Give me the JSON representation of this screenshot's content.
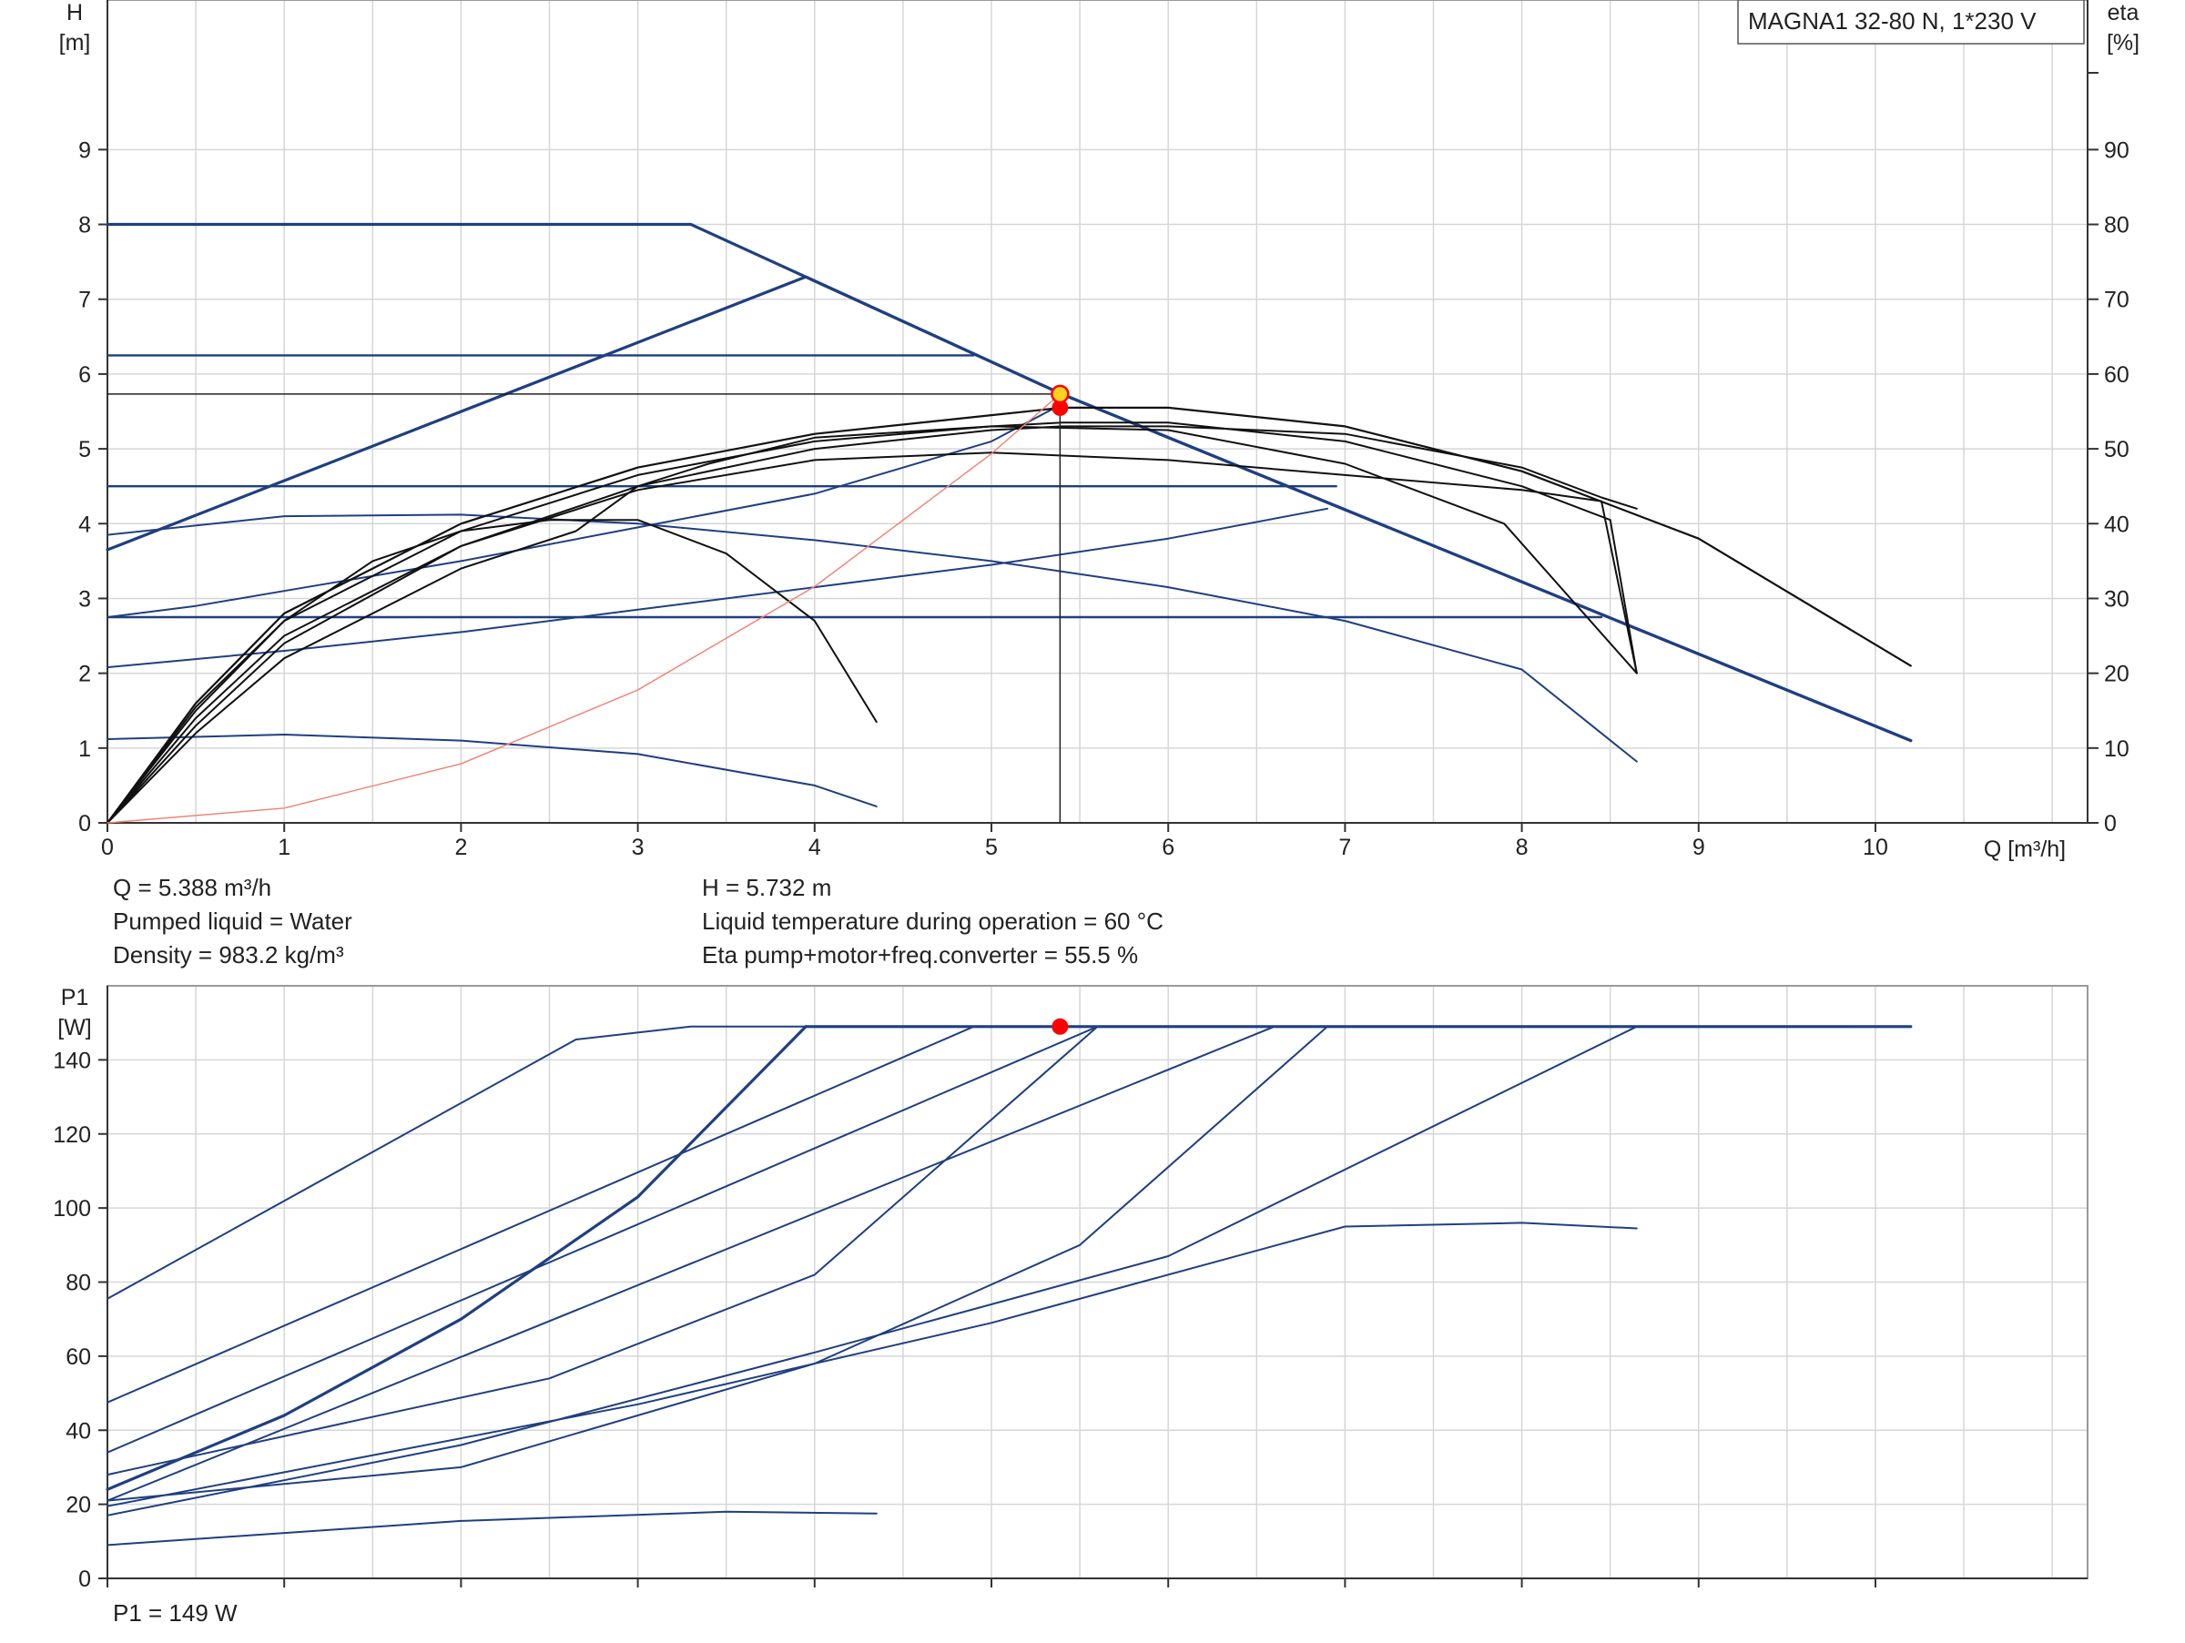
{
  "colors": {
    "navy": "#1f3f80",
    "black": "#111111",
    "grid": "#d6d6d6",
    "system_curve": "#f08070",
    "duty_point": "#ff0000",
    "duty_point_fill": "#ffd21f"
  },
  "product_label": "MAGNA1 32-80 N, 1*230 V",
  "info": {
    "q": "Q = 5.388 m³/h",
    "liquid": "Pumped liquid = Water",
    "density": "Density = 983.2 kg/m³",
    "h": "H = 5.732 m",
    "temp": "Liquid temperature during operation = 60 °C",
    "eta": "Eta pump+motor+freq.converter = 55.5 %",
    "p1": "P1 = 149 W"
  },
  "chart_data": [
    {
      "type": "line",
      "xlabel": "Q [m³/h]",
      "ylabel": "H\n[m]",
      "y2label": "eta\n[%]",
      "xlim": [
        0,
        11.2
      ],
      "ylim": [
        0,
        11
      ],
      "y2lim": [
        0,
        110
      ],
      "xticks": [
        0,
        1,
        2,
        3,
        4,
        5,
        6,
        7,
        8,
        9,
        10
      ],
      "yticks": [
        0,
        1,
        2,
        3,
        4,
        5,
        6,
        7,
        8,
        9
      ],
      "y2ticks": [
        0,
        10,
        20,
        30,
        40,
        50,
        60,
        70,
        80,
        90
      ],
      "grid": true,
      "duty_point": {
        "q": 5.388,
        "h": 5.732
      },
      "duty_eta": {
        "q": 5.388,
        "eta": 55.5
      },
      "series": [
        {
          "role": "head",
          "width": 3.2,
          "points": [
            [
              0,
              8
            ],
            [
              3.3,
              8
            ],
            [
              5.4,
              5.73
            ],
            [
              10.2,
              1.1
            ]
          ]
        },
        {
          "role": "head",
          "width": 3.2,
          "points": [
            [
              0,
              3.65
            ],
            [
              3.95,
              7.3
            ],
            [
              5.4,
              5.73
            ],
            [
              10.2,
              1.1
            ]
          ]
        },
        {
          "role": "head",
          "width": 2.4,
          "points": [
            [
              0,
              6.25
            ],
            [
              4.9,
              6.25
            ]
          ]
        },
        {
          "role": "head",
          "width": 2.4,
          "points": [
            [
              0,
              4.5
            ],
            [
              6.95,
              4.5
            ]
          ]
        },
        {
          "role": "head",
          "width": 2.4,
          "points": [
            [
              0,
              2.75
            ],
            [
              8.45,
              2.75
            ]
          ]
        },
        {
          "role": "head",
          "width": 2,
          "points": [
            [
              0,
              2.08
            ],
            [
              1,
              2.3
            ],
            [
              2,
              2.55
            ],
            [
              3,
              2.85
            ],
            [
              4,
              3.15
            ],
            [
              5,
              3.45
            ],
            [
              6,
              3.8
            ],
            [
              6.9,
              4.2
            ]
          ]
        },
        {
          "role": "head",
          "width": 2,
          "points": [
            [
              0,
              2.75
            ],
            [
              0.5,
              2.9
            ],
            [
              1,
              3.1
            ],
            [
              2,
              3.5
            ],
            [
              3,
              3.95
            ],
            [
              4,
              4.4
            ],
            [
              5,
              5.1
            ],
            [
              5.4,
              5.6
            ]
          ]
        },
        {
          "role": "head",
          "width": 2,
          "points": [
            [
              0,
              3.85
            ],
            [
              1,
              4.1
            ],
            [
              2,
              4.12
            ],
            [
              3,
              4
            ],
            [
              4,
              3.78
            ],
            [
              5,
              3.5
            ],
            [
              6,
              3.15
            ],
            [
              7,
              2.7
            ],
            [
              8,
              2.05
            ],
            [
              8.65,
              0.82
            ]
          ]
        },
        {
          "role": "head",
          "width": 2,
          "points": [
            [
              0,
              1.12
            ],
            [
              1,
              1.18
            ],
            [
              2,
              1.1
            ],
            [
              3,
              0.92
            ],
            [
              4,
              0.5
            ],
            [
              4.35,
              0.22
            ]
          ]
        },
        {
          "role": "eta",
          "width": 2,
          "points": [
            [
              0,
              0
            ],
            [
              0.5,
              13
            ],
            [
              1,
              24
            ],
            [
              2,
              37
            ],
            [
              3,
              45
            ],
            [
              4,
              50
            ],
            [
              5,
              52.5
            ],
            [
              5.4,
              53
            ],
            [
              6,
              53
            ],
            [
              7,
              52
            ],
            [
              8,
              47.5
            ],
            [
              8.45,
              43.5
            ],
            [
              8.65,
              42
            ]
          ]
        },
        {
          "role": "eta",
          "width": 2.2,
          "points": [
            [
              0,
              0
            ],
            [
              0.5,
              16
            ],
            [
              1,
              28
            ],
            [
              2,
              40
            ],
            [
              3,
              47.5
            ],
            [
              4,
              52
            ],
            [
              5,
              54.5
            ],
            [
              5.4,
              55.5
            ],
            [
              6,
              55.5
            ],
            [
              7,
              53
            ],
            [
              8,
              47
            ],
            [
              9,
              38
            ],
            [
              10.2,
              21
            ]
          ]
        },
        {
          "role": "eta",
          "width": 2,
          "points": [
            [
              0,
              0
            ],
            [
              0.5,
              15
            ],
            [
              1,
              27
            ],
            [
              2,
              39
            ],
            [
              3,
              46.5
            ],
            [
              4,
              51
            ],
            [
              5,
              53
            ],
            [
              5.4,
              53.5
            ],
            [
              6,
              53.5
            ],
            [
              7,
              51
            ],
            [
              8,
              45
            ],
            [
              8.5,
              40.5
            ],
            [
              8.65,
              20
            ]
          ]
        },
        {
          "role": "eta",
          "width": 2,
          "points": [
            [
              0,
              0
            ],
            [
              0.5,
              14
            ],
            [
              1,
              25
            ],
            [
              2,
              37
            ],
            [
              3,
              44.5
            ],
            [
              4,
              48.5
            ],
            [
              5,
              49.5
            ],
            [
              6,
              48.5
            ],
            [
              7,
              46.5
            ],
            [
              8,
              44.5
            ],
            [
              8.45,
              43
            ],
            [
              8.65,
              20
            ]
          ]
        },
        {
          "role": "eta",
          "width": 2,
          "points": [
            [
              0,
              0
            ],
            [
              0.5,
              12
            ],
            [
              1,
              22
            ],
            [
              2,
              34
            ],
            [
              2.65,
              39
            ],
            [
              3,
              45
            ],
            [
              3.4,
              48
            ],
            [
              4,
              51.5
            ],
            [
              5,
              53
            ],
            [
              6,
              52.5
            ],
            [
              7,
              48
            ],
            [
              7.9,
              40
            ],
            [
              8.65,
              20
            ]
          ]
        },
        {
          "role": "eta",
          "width": 2,
          "points": [
            [
              0,
              0
            ],
            [
              0.5,
              15.5
            ],
            [
              1,
              27
            ],
            [
              1.5,
              35
            ],
            [
              2,
              39
            ],
            [
              2.5,
              40.5
            ],
            [
              3,
              40.5
            ],
            [
              3.5,
              36
            ],
            [
              4,
              27
            ],
            [
              4.35,
              13.5
            ]
          ]
        },
        {
          "role": "system",
          "width": 1.4,
          "points": [
            [
              0,
              0
            ],
            [
              1,
              0.197
            ],
            [
              2,
              0.79
            ],
            [
              3,
              1.777
            ],
            [
              4,
              3.159
            ],
            [
              5,
              4.936
            ],
            [
              5.388,
              5.732
            ]
          ]
        }
      ]
    },
    {
      "type": "line",
      "xlabel": "",
      "ylabel": "P1\n[W]",
      "xlim": [
        0,
        11.2
      ],
      "ylim": [
        0,
        160
      ],
      "xticks": [
        0,
        1,
        2,
        3,
        4,
        5,
        6,
        7,
        8,
        9,
        10
      ],
      "yticks": [
        0,
        20,
        40,
        60,
        80,
        100,
        120,
        140
      ],
      "grid": true,
      "duty_point": {
        "q": 5.388,
        "p1": 149
      },
      "series": [
        {
          "role": "power",
          "width": 3.2,
          "points": [
            [
              3.95,
              149
            ],
            [
              10.2,
              149
            ]
          ]
        },
        {
          "role": "power",
          "width": 3.2,
          "points": [
            [
              0,
              24
            ],
            [
              1,
              44
            ],
            [
              2,
              70
            ],
            [
              3,
              103
            ],
            [
              3.95,
              149
            ]
          ]
        },
        {
          "role": "power",
          "width": 2,
          "points": [
            [
              0,
              75.5
            ],
            [
              2.65,
              145.5
            ],
            [
              3.3,
              149
            ],
            [
              3.95,
              149
            ]
          ]
        },
        {
          "role": "power",
          "width": 2,
          "points": [
            [
              0,
              47.5
            ],
            [
              4.9,
              149
            ]
          ]
        },
        {
          "role": "power",
          "width": 2,
          "points": [
            [
              0,
              34
            ],
            [
              5.6,
              149
            ]
          ]
        },
        {
          "role": "power",
          "width": 2,
          "points": [
            [
              0,
              28
            ],
            [
              2.5,
              54
            ],
            [
              4,
              82
            ],
            [
              5.6,
              149
            ]
          ]
        },
        {
          "role": "power",
          "width": 2,
          "points": [
            [
              0,
              21
            ],
            [
              6.6,
              149
            ]
          ]
        },
        {
          "role": "power",
          "width": 2,
          "points": [
            [
              0,
              21
            ],
            [
              2,
              30
            ],
            [
              4,
              58
            ],
            [
              5.5,
              90
            ],
            [
              6.9,
              149
            ]
          ]
        },
        {
          "role": "power",
          "width": 2,
          "points": [
            [
              0,
              17
            ],
            [
              2,
              36
            ],
            [
              4,
              61
            ],
            [
              6,
              87
            ],
            [
              8.65,
              149
            ]
          ]
        },
        {
          "role": "power",
          "width": 2,
          "points": [
            [
              0,
              19.5
            ],
            [
              3,
              47
            ],
            [
              5,
              69
            ],
            [
              7,
              95
            ],
            [
              8,
              96
            ],
            [
              8.65,
              94.5
            ]
          ]
        },
        {
          "role": "power",
          "width": 2,
          "points": [
            [
              0,
              9
            ],
            [
              2,
              15.5
            ],
            [
              3.5,
              18
            ],
            [
              4.35,
              17.5
            ]
          ]
        }
      ]
    }
  ]
}
